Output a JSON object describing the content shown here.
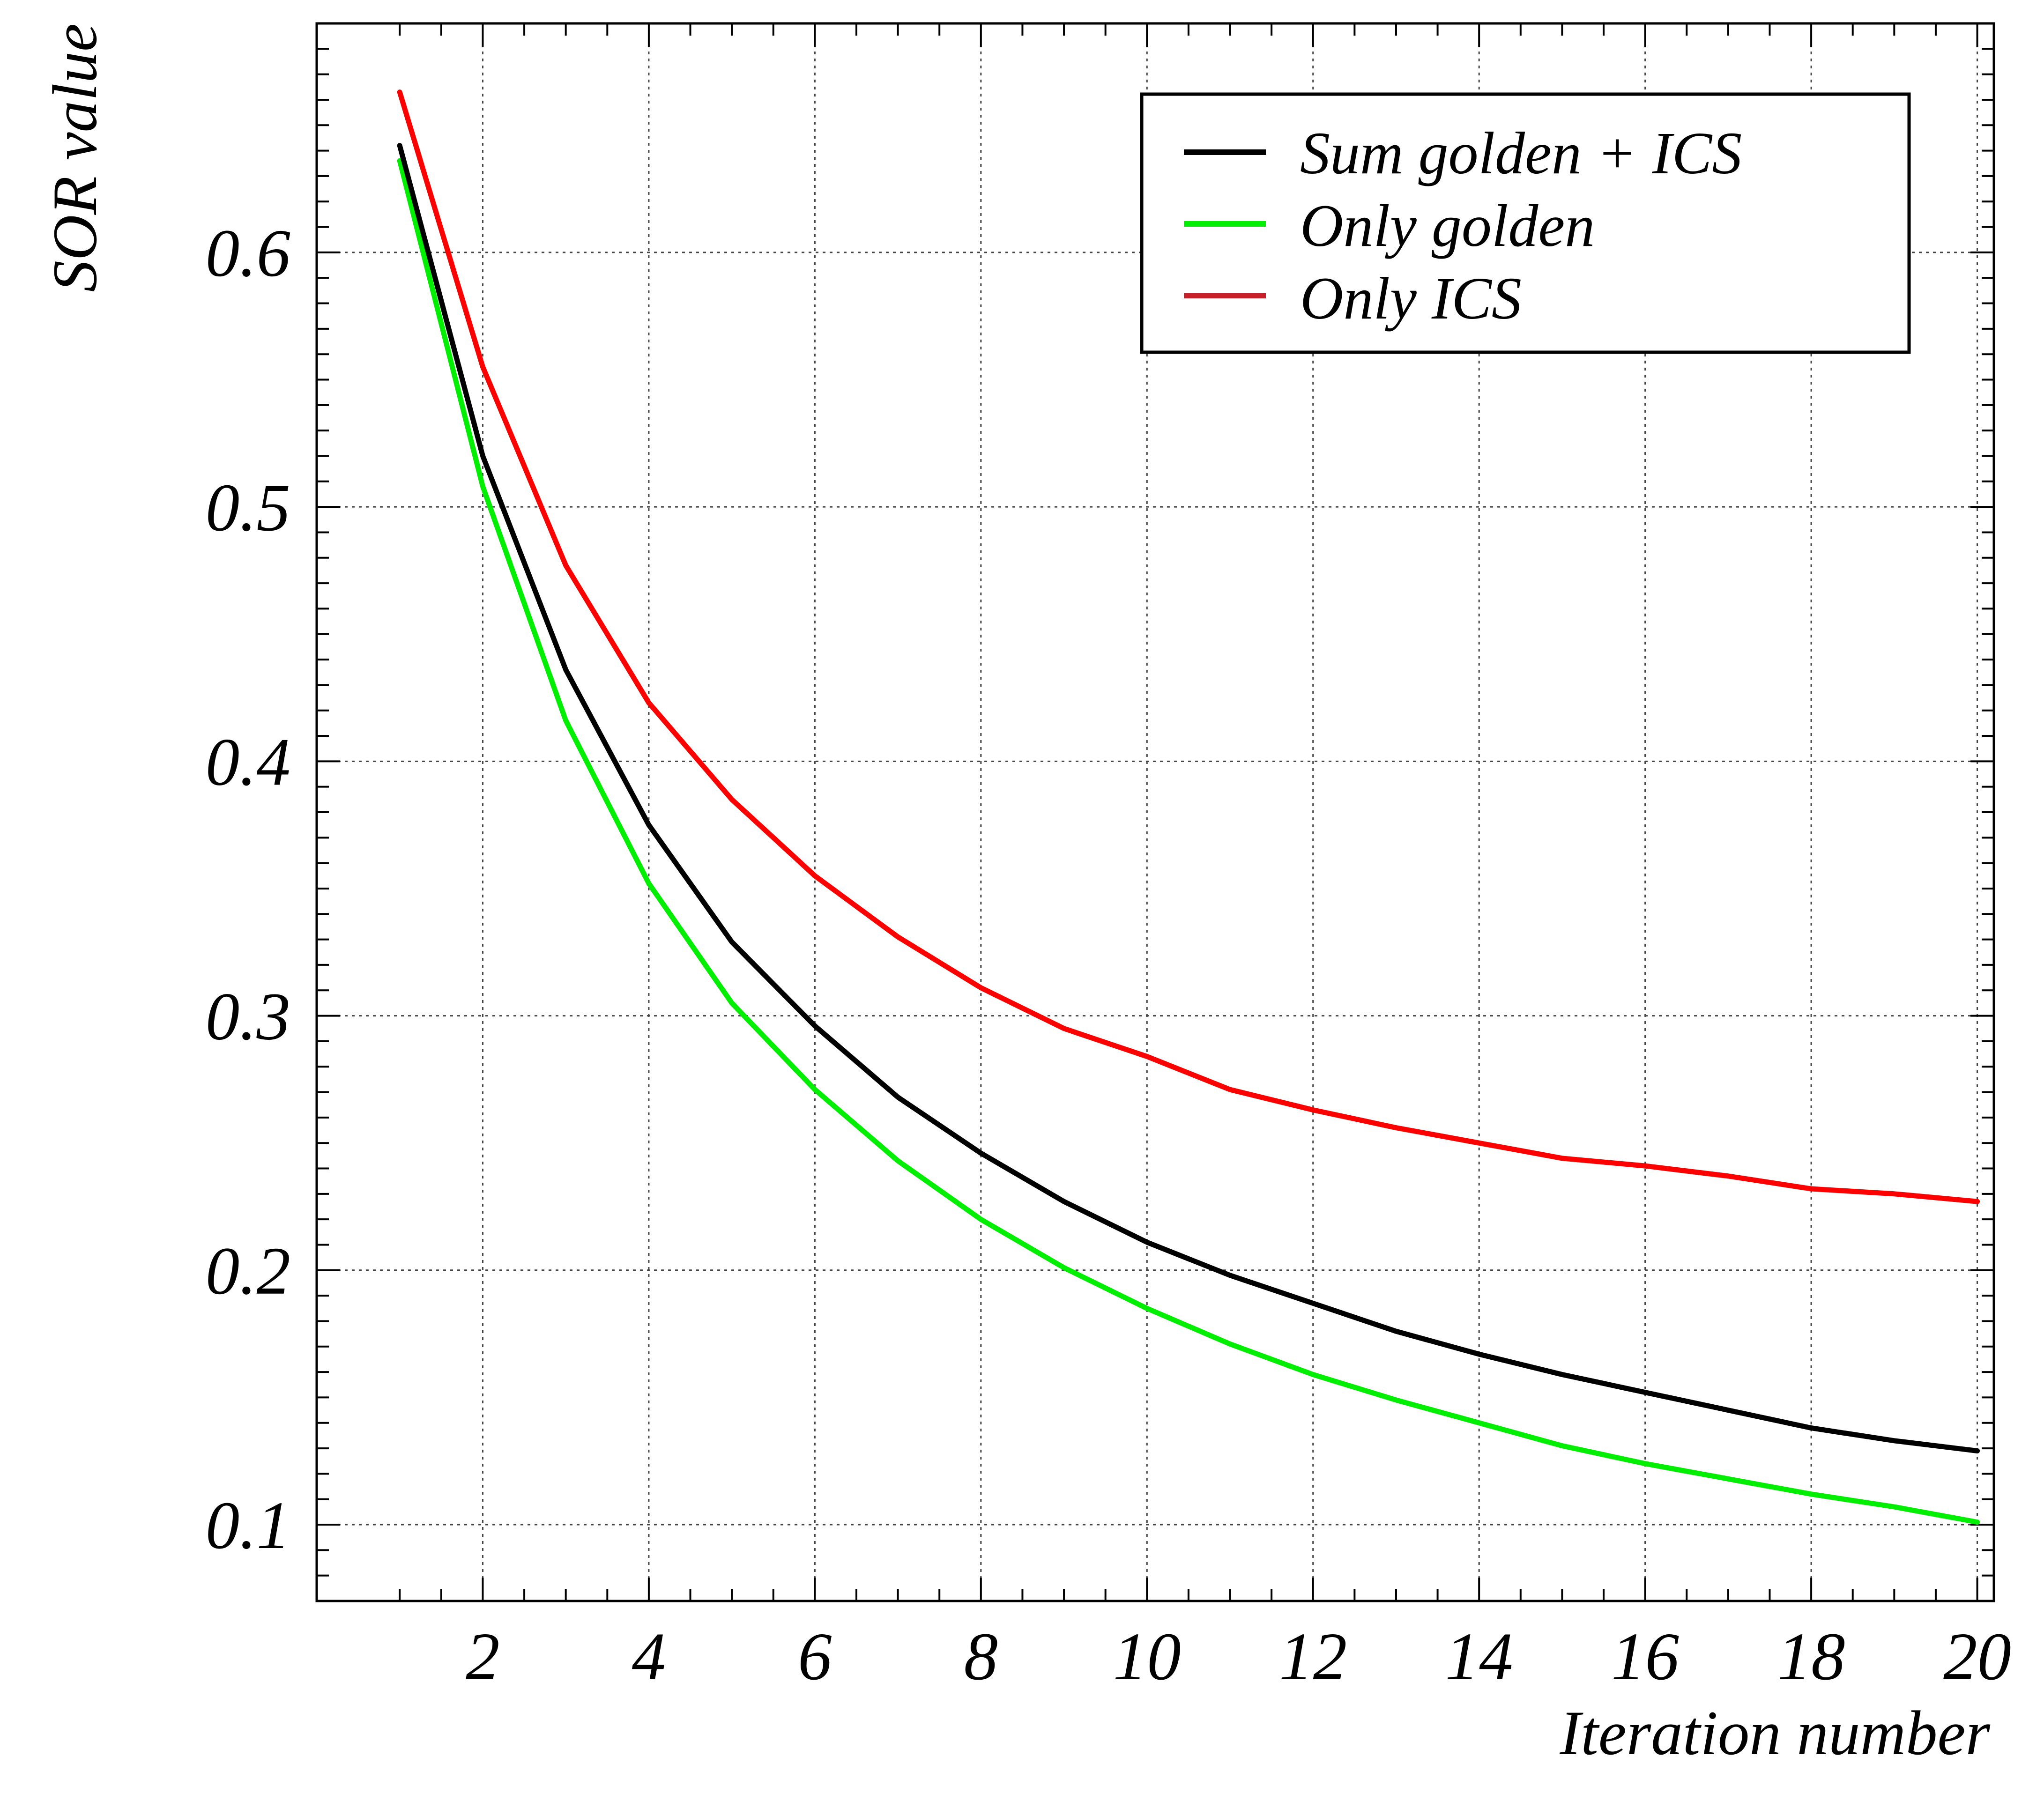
{
  "chart_data": {
    "type": "line",
    "title": "",
    "xlabel": "Iteration number",
    "ylabel": "SOR value",
    "xlim": [
      0.0,
      20.2
    ],
    "ylim": [
      0.07,
      0.69
    ],
    "x_ticks": [
      2,
      4,
      6,
      8,
      10,
      12,
      14,
      16,
      18,
      20
    ],
    "x_tick_labels": [
      "2",
      "4",
      "6",
      "8",
      "10",
      "12",
      "14",
      "16",
      "18",
      "20"
    ],
    "y_ticks": [
      0.1,
      0.2,
      0.3,
      0.4,
      0.5,
      0.6
    ],
    "y_tick_labels": [
      "0.1",
      "0.2",
      "0.3",
      "0.4",
      "0.5",
      "0.6"
    ],
    "grid": true,
    "legend_position": "top-right",
    "x": [
      1,
      2,
      3,
      4,
      5,
      6,
      7,
      8,
      9,
      10,
      11,
      12,
      13,
      14,
      15,
      16,
      17,
      18,
      19,
      20
    ],
    "series": [
      {
        "name": "Sum golden + ICS",
        "color": "#000000",
        "values": [
          0.642,
          0.52,
          0.436,
          0.375,
          0.329,
          0.296,
          0.268,
          0.246,
          0.227,
          0.211,
          0.198,
          0.187,
          0.176,
          0.167,
          0.159,
          0.152,
          0.145,
          0.138,
          0.133,
          0.129
        ]
      },
      {
        "name": "Only golden",
        "color": "#00ee00",
        "values": [
          0.636,
          0.508,
          0.416,
          0.352,
          0.305,
          0.271,
          0.243,
          0.22,
          0.201,
          0.185,
          0.171,
          0.159,
          0.149,
          0.14,
          0.131,
          0.124,
          0.118,
          0.112,
          0.107,
          0.101
        ]
      },
      {
        "name": "Only ICS",
        "color": "#ff0000",
        "values": [
          0.663,
          0.555,
          0.477,
          0.423,
          0.385,
          0.355,
          0.331,
          0.311,
          0.295,
          0.284,
          0.271,
          0.263,
          0.256,
          0.25,
          0.244,
          0.241,
          0.237,
          0.232,
          0.23,
          0.227
        ]
      }
    ],
    "legend": [
      {
        "label": "Sum golden + ICS",
        "color": "#000000"
      },
      {
        "label": "Only golden",
        "color": "#00ee00"
      },
      {
        "label": "Only ICS",
        "color": "#c8202a"
      }
    ]
  }
}
